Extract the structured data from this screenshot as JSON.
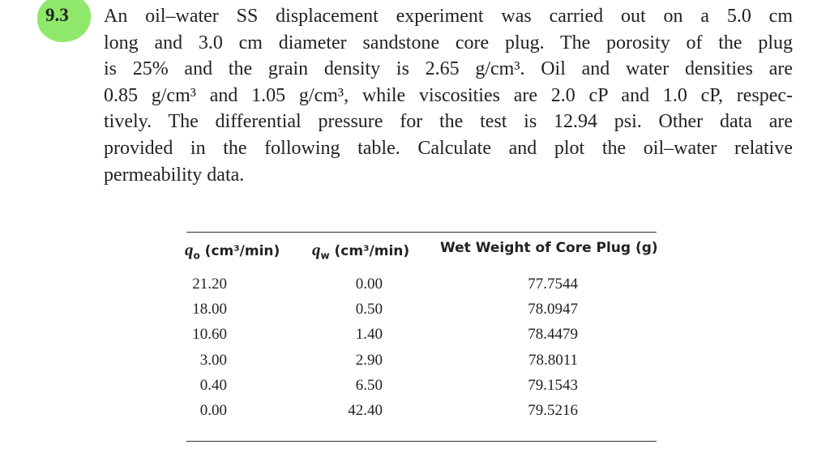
{
  "problem": {
    "number": "9.3",
    "lines": [
      "An oil–water SS displacement experiment was carried out on a 5.0 cm",
      "long and 3.0 cm diameter sandstone core plug. The porosity of the plug",
      "is 25% and the grain density is 2.65 g/cm³. Oil and water densities are",
      "0.85 g/cm³ and 1.05 g/cm³, while viscosities are 2.0 cP and 1.0 cP, respec-",
      "tively. The differential pressure for the test is 12.94 psi. Other data are",
      "provided in the following table. Calculate and plot the oil–water relative",
      "permeability data."
    ]
  },
  "table": {
    "header": [
      {
        "symbol": "q",
        "subscript": "o",
        "unit": "(cm³/min)"
      },
      {
        "symbol": "q",
        "subscript": "w",
        "unit": "(cm³/min)"
      },
      {
        "text": "Wet Weight of Core Plug (g)"
      }
    ],
    "rows": [
      [
        "21.20",
        "0.00",
        "77.7544"
      ],
      [
        "18.00",
        "0.50",
        "78.0947"
      ],
      [
        "10.60",
        "1.40",
        "78.4479"
      ],
      [
        "3.00",
        "2.90",
        "78.8011"
      ],
      [
        "0.40",
        "6.50",
        "79.1543"
      ],
      [
        "0.00",
        "42.40",
        "79.5216"
      ]
    ]
  }
}
